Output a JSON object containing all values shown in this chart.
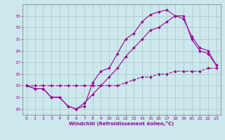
{
  "bg_color": "#cce8ec",
  "grid_color": "#aacccc",
  "line_color": "#990099",
  "xlabel": "Windchill (Refroidissement éolien,°C)",
  "xlim": [
    -0.5,
    23.5
  ],
  "ylim": [
    18,
    37
  ],
  "yticks": [
    19,
    21,
    23,
    25,
    27,
    29,
    31,
    33,
    35
  ],
  "xticks": [
    0,
    1,
    2,
    3,
    4,
    5,
    6,
    7,
    8,
    9,
    10,
    11,
    12,
    13,
    14,
    15,
    16,
    17,
    18,
    19,
    20,
    21,
    22,
    23
  ],
  "line1_x": [
    0,
    1,
    2,
    3,
    4,
    5,
    6,
    7,
    8,
    9,
    10,
    11,
    12,
    13,
    14,
    15,
    16,
    17,
    18,
    19,
    20,
    21,
    22,
    23
  ],
  "line1_y": [
    23,
    22.5,
    22.5,
    21,
    21,
    19.5,
    19,
    19.5,
    23.5,
    25.5,
    26,
    28.5,
    31,
    32,
    34,
    35.2,
    35.7,
    36,
    35,
    35,
    31,
    29,
    28.5,
    26.5
  ],
  "line2_x": [
    0,
    1,
    2,
    3,
    4,
    5,
    6,
    7,
    8,
    9,
    10,
    11,
    12,
    13,
    14,
    15,
    16,
    17,
    18,
    19,
    20,
    21,
    22,
    23
  ],
  "line2_y": [
    23,
    22.5,
    22.5,
    21,
    21,
    19.5,
    19,
    20,
    21.5,
    23,
    24.5,
    26,
    28,
    29.5,
    31,
    32.5,
    33,
    34,
    35,
    34.5,
    31.5,
    29.5,
    29,
    26.5
  ],
  "line3_x": [
    0,
    1,
    2,
    3,
    4,
    5,
    6,
    7,
    8,
    9,
    10,
    11,
    12,
    13,
    14,
    15,
    16,
    17,
    18,
    19,
    20,
    21,
    22,
    23
  ],
  "line3_y": [
    23,
    23,
    23,
    23,
    23,
    23,
    23,
    23,
    23,
    23,
    23,
    23,
    23.5,
    24,
    24.5,
    24.5,
    25,
    25,
    25.5,
    25.5,
    25.5,
    25.5,
    26,
    26
  ]
}
